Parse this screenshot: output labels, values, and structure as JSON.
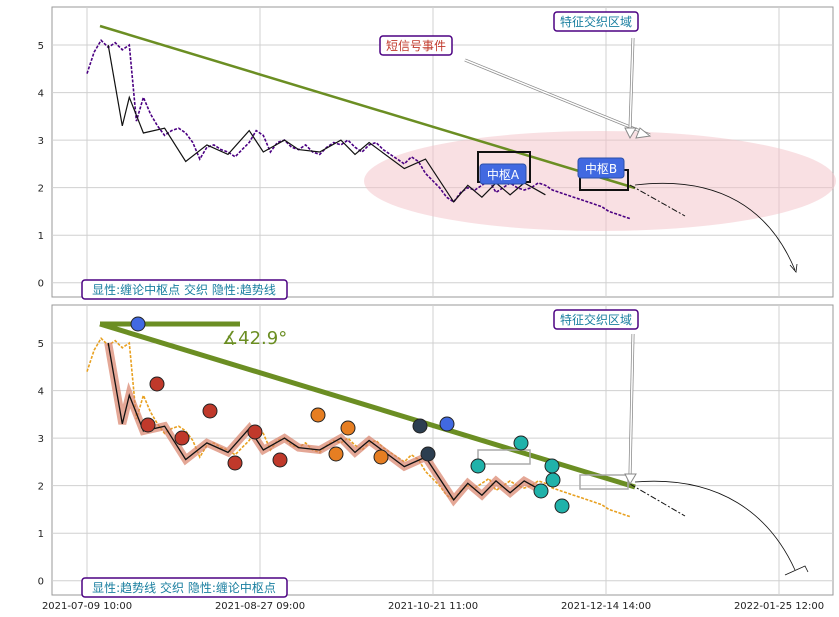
{
  "chart_data": [
    {
      "type": "line",
      "panel": "top",
      "ylim": [
        -0.3,
        5.8
      ],
      "yticks": [
        0,
        1,
        2,
        3,
        4,
        5
      ],
      "grid": true,
      "series": [
        {
          "x": [
            0,
            2,
            4,
            6,
            8,
            10,
            12,
            14,
            16,
            18,
            20,
            22,
            24,
            26,
            28,
            30,
            32,
            34,
            36,
            38,
            40,
            42,
            44,
            46,
            48,
            50,
            52,
            54,
            56,
            58,
            60,
            62,
            64,
            66,
            68,
            70,
            72,
            74,
            76,
            78,
            80,
            82,
            84,
            86,
            88,
            90,
            92,
            94,
            96,
            98,
            100,
            102,
            104,
            106,
            108,
            110,
            112,
            114,
            116,
            118,
            120,
            122,
            124,
            126,
            128,
            130,
            132,
            134,
            136,
            138,
            140,
            142,
            144,
            146,
            148,
            150,
            152,
            154
          ],
          "y": [
            4.4,
            4.85,
            5.1,
            4.95,
            5.05,
            4.9,
            5.0,
            3.4,
            3.9,
            3.55,
            3.3,
            3.1,
            3.2,
            3.25,
            3.15,
            2.95,
            2.6,
            2.85,
            2.9,
            2.8,
            2.75,
            2.65,
            2.8,
            2.95,
            3.2,
            3.1,
            2.75,
            2.95,
            3.0,
            2.85,
            2.8,
            2.9,
            2.75,
            2.7,
            2.85,
            2.95,
            2.9,
            3.0,
            2.85,
            2.75,
            2.9,
            2.95,
            2.8,
            2.7,
            2.6,
            2.5,
            2.65,
            2.55,
            2.3,
            2.15,
            2.0,
            1.8,
            1.7,
            1.9,
            2.0,
            1.95,
            2.05,
            2.15,
            1.9,
            2.0,
            2.1,
            2.0,
            1.95,
            2.0,
            2.1,
            2.05,
            1.95,
            1.9,
            1.85,
            1.8,
            1.75,
            1.7,
            1.65,
            1.6,
            1.5,
            1.45,
            1.4,
            1.35
          ]
        }
      ],
      "annotations": [
        "短信号事件",
        "特征交织区域",
        "中枢A",
        "中枢B",
        "显性:缠论中枢点 交织 隐性:趋势线"
      ]
    },
    {
      "type": "line",
      "panel": "bottom",
      "ylim": [
        -0.3,
        5.8
      ],
      "yticks": [
        0,
        1,
        2,
        3,
        4,
        5
      ],
      "grid": true,
      "angle_label": "∡42.9°",
      "annotations": [
        "特征交织区域",
        "显性:趋势线 交织 隐性:缠论中枢点"
      ]
    }
  ],
  "xticks": [
    "2021-07-09 10:00",
    "2021-08-27 09:00",
    "2021-10-21 11:00",
    "2021-12-14 14:00",
    "2022-01-25 12:00"
  ],
  "colors": {
    "trend": "#6b8e23",
    "price_purple": "#4b0082",
    "price_orange": "#e8a020",
    "zone_pink": "#f4c2c8",
    "pivot_box": "#4169e1",
    "label_border": "#4b0082",
    "label_text": "#1a7fa0",
    "signal_text": "#c0392b"
  }
}
